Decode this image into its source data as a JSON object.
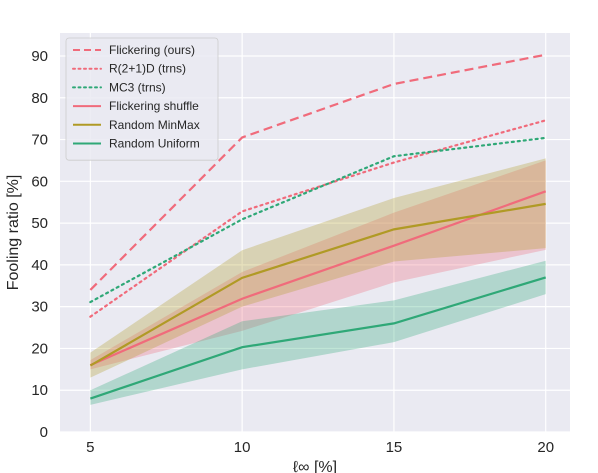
{
  "chart_data": {
    "type": "line",
    "xlabel": "ℓ∞ [%]",
    "ylabel": "Fooling ratio [%]",
    "x": [
      5,
      10,
      15,
      20
    ],
    "xlim": [
      4.0,
      20.8
    ],
    "ylim": [
      0,
      95.5
    ],
    "xticks": [
      "5",
      "10",
      "15",
      "20"
    ],
    "yticks": [
      "0",
      "10",
      "20",
      "30",
      "40",
      "50",
      "60",
      "70",
      "80",
      "90"
    ],
    "grid": true,
    "background": "#eaeaf2",
    "legend_position": "top-left",
    "series": [
      {
        "name": "Flickering (ours)",
        "values": [
          34.0,
          70.5,
          83.3,
          90.3
        ],
        "style": "dashed",
        "color": "#f06b7b"
      },
      {
        "name": "R(2+1)D (trns)",
        "values": [
          27.6,
          52.8,
          64.5,
          74.6
        ],
        "style": "dotted",
        "color": "#f06b7b"
      },
      {
        "name": "MC3 (trns)",
        "values": [
          31.1,
          50.9,
          66.0,
          70.4
        ],
        "style": "dotted",
        "color": "#2fa877"
      },
      {
        "name": "Flickering shuffle",
        "values": [
          16.0,
          31.9,
          44.6,
          57.6
        ],
        "style": "solid",
        "color": "#f06b7b",
        "band_low": [
          15.0,
          24.2,
          35.8,
          43.6
        ],
        "band_high": [
          17.2,
          38.3,
          52.5,
          65.0
        ]
      },
      {
        "name": "Random MinMax",
        "values": [
          15.9,
          36.9,
          48.5,
          54.6
        ],
        "style": "solid",
        "color": "#b09a25",
        "band_low": [
          13.0,
          30.0,
          40.8,
          44.0
        ],
        "band_high": [
          19.0,
          43.5,
          56.0,
          65.5
        ]
      },
      {
        "name": "Random Uniform",
        "values": [
          8.0,
          20.3,
          26.0,
          37.0
        ],
        "style": "solid",
        "color": "#2fa877",
        "band_low": [
          6.5,
          15.0,
          21.5,
          33.0
        ],
        "band_high": [
          10.0,
          26.5,
          31.5,
          41.0
        ]
      }
    ]
  }
}
